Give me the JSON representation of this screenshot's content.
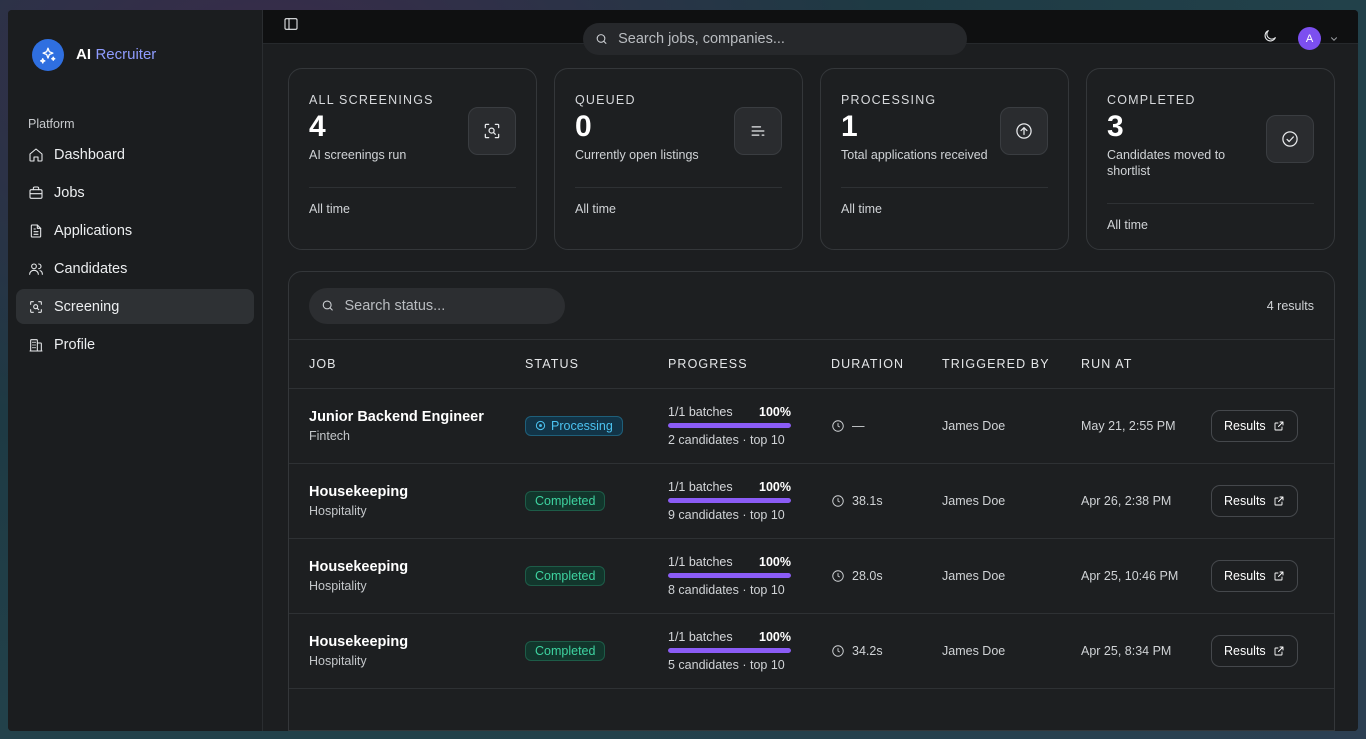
{
  "brand": {
    "name": "AI",
    "accent": "Recruiter"
  },
  "sidebar": {
    "group_label": "Platform",
    "items": [
      {
        "label": "Dashboard",
        "icon": "home-icon"
      },
      {
        "label": "Jobs",
        "icon": "briefcase-icon"
      },
      {
        "label": "Applications",
        "icon": "document-icon"
      },
      {
        "label": "Candidates",
        "icon": "users-icon"
      },
      {
        "label": "Screening",
        "icon": "scan-icon",
        "active": true
      },
      {
        "label": "Profile",
        "icon": "building-icon"
      }
    ]
  },
  "topbar": {
    "search_placeholder": "Search jobs, companies...",
    "avatar_initial": "A"
  },
  "stats": [
    {
      "label": "ALL SCREENINGS",
      "value": "4",
      "desc": "AI screenings run",
      "foot": "All time",
      "icon": "scan-icon"
    },
    {
      "label": "QUEUED",
      "value": "0",
      "desc": "Currently open listings",
      "foot": "All time",
      "icon": "list-icon"
    },
    {
      "label": "PROCESSING",
      "value": "1",
      "desc": "Total applications received",
      "foot": "All time",
      "icon": "upload-circle-icon"
    },
    {
      "label": "COMPLETED",
      "value": "3",
      "desc": "Candidates moved to shortlist",
      "foot": "All time",
      "icon": "check-circle-icon"
    }
  ],
  "table": {
    "search_placeholder": "Search status...",
    "results_count": "4 results",
    "columns": [
      "JOB",
      "STATUS",
      "PROGRESS",
      "DURATION",
      "TRIGGERED BY",
      "RUN AT"
    ],
    "rows": [
      {
        "title": "Junior Backend Engineer",
        "company": "Fintech",
        "status": "Processing",
        "batches": "1/1 batches",
        "percent": "100%",
        "progress": 1.0,
        "candidates": "2 candidates · top 10",
        "duration": "—",
        "triggered_by": "James Doe",
        "run_at": "May 21, 2:55 PM",
        "action": "Results"
      },
      {
        "title": "Housekeeping",
        "company": "Hospitality",
        "status": "Completed",
        "batches": "1/1 batches",
        "percent": "100%",
        "progress": 1.0,
        "candidates": "9 candidates · top 10",
        "duration": "38.1s",
        "triggered_by": "James Doe",
        "run_at": "Apr 26, 2:38 PM",
        "action": "Results"
      },
      {
        "title": "Housekeeping",
        "company": "Hospitality",
        "status": "Completed",
        "batches": "1/1 batches",
        "percent": "100%",
        "progress": 1.0,
        "candidates": "8 candidates · top 10",
        "duration": "28.0s",
        "triggered_by": "James Doe",
        "run_at": "Apr 25, 10:46 PM",
        "action": "Results"
      },
      {
        "title": "Housekeeping",
        "company": "Hospitality",
        "status": "Completed",
        "batches": "1/1 batches",
        "percent": "100%",
        "progress": 1.0,
        "candidates": "5 candidates · top 10",
        "duration": "34.2s",
        "triggered_by": "James Doe",
        "run_at": "Apr 25, 8:34 PM",
        "action": "Results"
      }
    ]
  },
  "colors": {
    "accent": "#8b5cf6",
    "brand_blue": "#2f6fe0",
    "processing": "#4cc3f0",
    "completed": "#3ed3a0"
  }
}
